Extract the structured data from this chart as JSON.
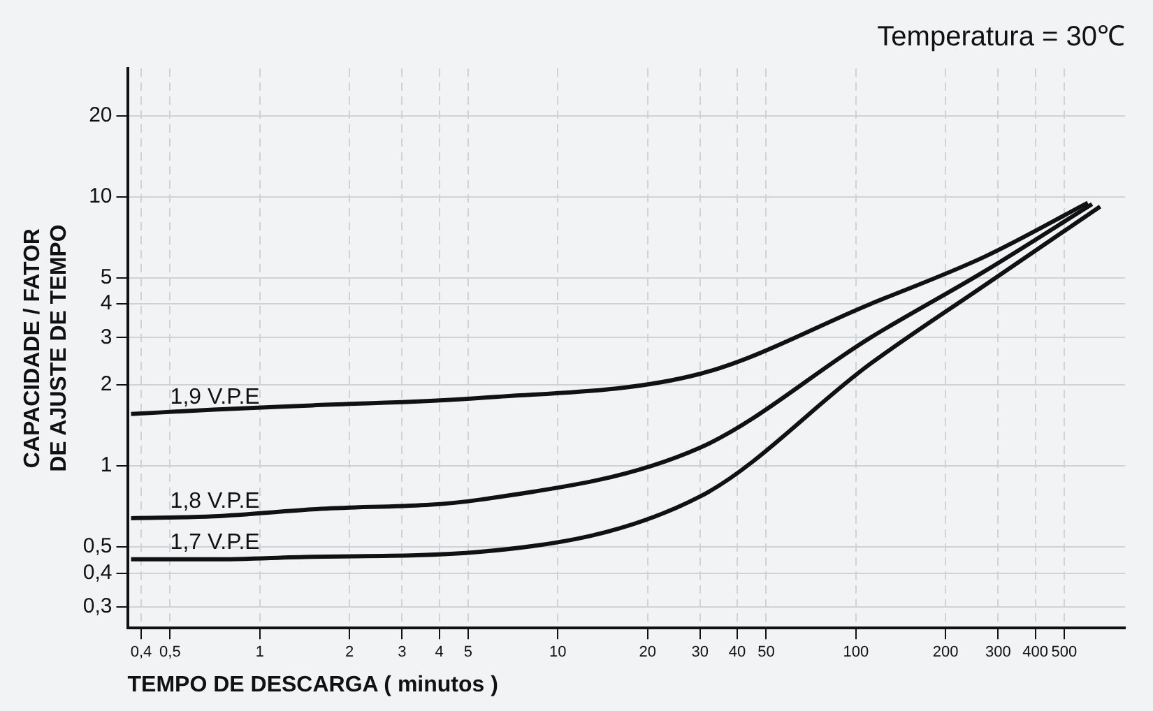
{
  "chart_data": {
    "type": "line",
    "title": "Temperatura = 30℃",
    "xlabel": "TEMPO DE DESCARGA ( minutos )",
    "ylabel": "CAPACIDADE / FATOR\nDE AJUSTE DE TEMPO",
    "log": "xy",
    "grid": true,
    "legend": false,
    "marker": "none",
    "line_style": "solid",
    "xlim": [
      0.36,
      800
    ],
    "ylim": [
      0.25,
      30
    ],
    "xticks": [
      {
        "value": 0.4,
        "label": "0,4"
      },
      {
        "value": 0.5,
        "label": "0,5"
      },
      1,
      2,
      3,
      4,
      5,
      10,
      20,
      30,
      40,
      50,
      100,
      200,
      300,
      400,
      500
    ],
    "yticks": [
      {
        "value": 0.3,
        "label": "0,3"
      },
      {
        "value": 0.4,
        "label": "0,4"
      },
      {
        "value": 0.5,
        "label": "0,5"
      },
      1,
      2,
      3,
      4,
      5,
      10,
      20
    ],
    "series": [
      {
        "name": "1,9 V.P.E",
        "color": "#111111",
        "x": [
          0.37,
          0.7,
          1.5,
          5.5,
          30,
          112,
          271,
          600
        ],
        "values": [
          1.56,
          1.62,
          1.68,
          1.79,
          2.2,
          4,
          6,
          9.5
        ]
      },
      {
        "name": "1,8 V.P.E",
        "color": "#111111",
        "x": [
          0.37,
          0.7,
          1.5,
          5.5,
          30,
          112,
          271,
          620
        ],
        "values": [
          0.64,
          0.65,
          0.69,
          0.75,
          1.17,
          3,
          5.3,
          9.4
        ]
      },
      {
        "name": "1,7 V.P.E",
        "color": "#111111",
        "x": [
          0.37,
          0.7,
          1.5,
          5.5,
          30,
          112,
          271,
          660
        ],
        "values": [
          0.45,
          0.45,
          0.46,
          0.48,
          0.77,
          2.4,
          4.7,
          9.2
        ]
      }
    ]
  }
}
